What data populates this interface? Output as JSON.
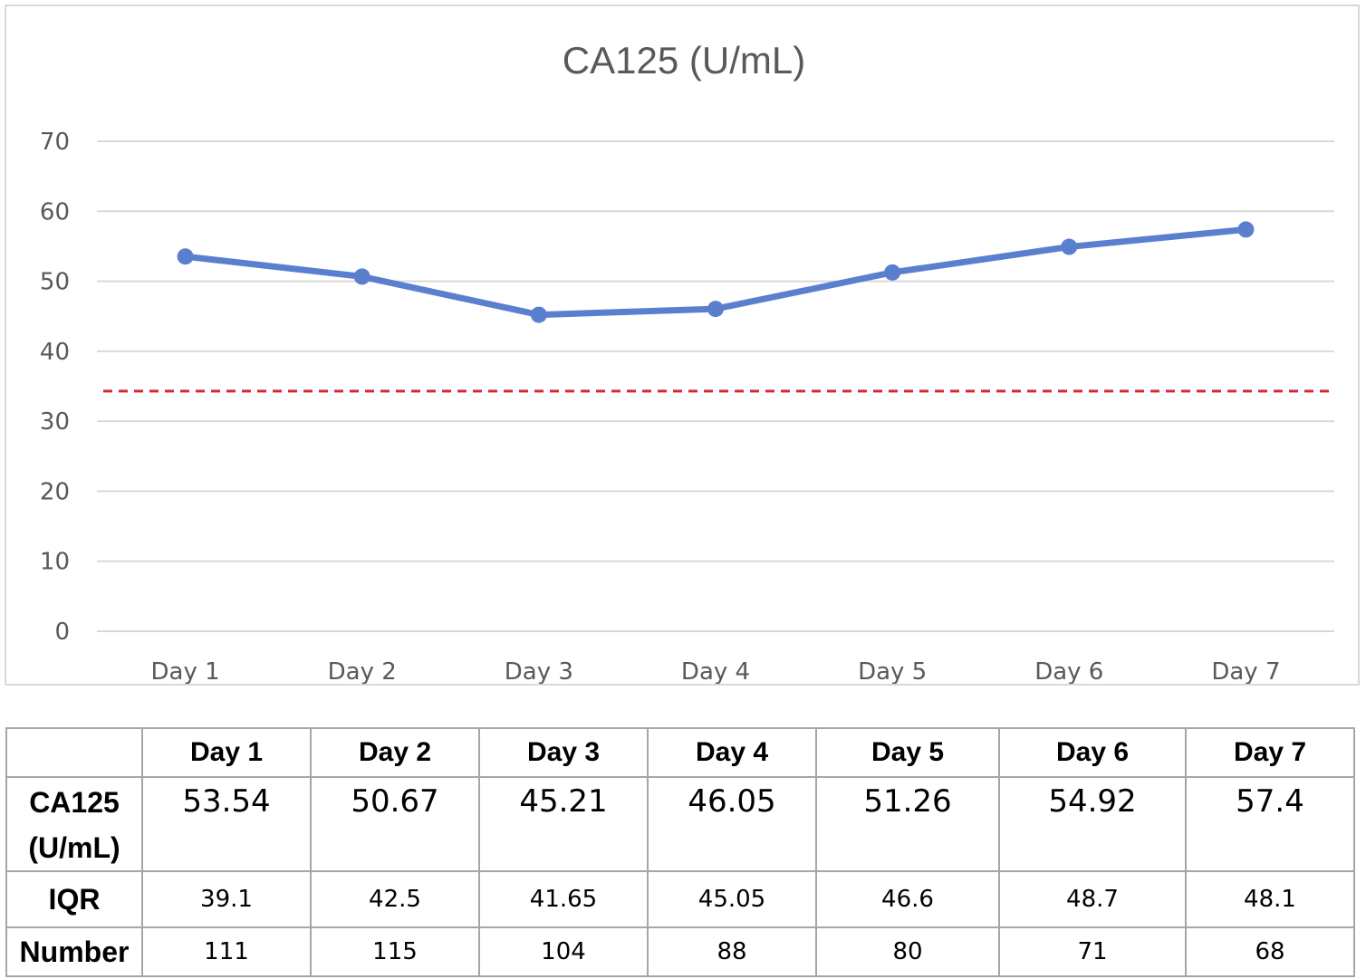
{
  "chart_data": {
    "type": "line",
    "title": "CA125 (U/mL)",
    "categories": [
      "Day 1",
      "Day 2",
      "Day 3",
      "Day 4",
      "Day 5",
      "Day 6",
      "Day 7"
    ],
    "series": [
      {
        "values": [
          53.54,
          50.67,
          45.21,
          46.05,
          51.26,
          54.92,
          57.4
        ],
        "color": "#5b7fcf"
      }
    ],
    "reference_line": {
      "value": 34.3,
      "color": "#d42a2a",
      "style": "dashed"
    },
    "ylim": [
      0,
      70
    ],
    "yticks": [
      0,
      10,
      20,
      30,
      40,
      50,
      60,
      70
    ],
    "grid": true,
    "xlabel": "",
    "ylabel": ""
  },
  "table": {
    "columns": [
      "",
      "Day 1",
      "Day 2",
      "Day 3",
      "Day 4",
      "Day 5",
      "Day 6",
      "Day 7"
    ],
    "rows": [
      {
        "label_line1": "CA125",
        "label_line2": "(U/mL)",
        "values": [
          "53.54",
          "50.67",
          "45.21",
          "46.05",
          "51.26",
          "54.92",
          "57.4"
        ]
      },
      {
        "label": "IQR",
        "values": [
          "39.1",
          "42.5",
          "41.65",
          "45.05",
          "46.6",
          "48.7",
          "48.1"
        ]
      },
      {
        "label": "Number",
        "values": [
          "111",
          "115",
          "104",
          "88",
          "80",
          "71",
          "68"
        ]
      }
    ]
  }
}
